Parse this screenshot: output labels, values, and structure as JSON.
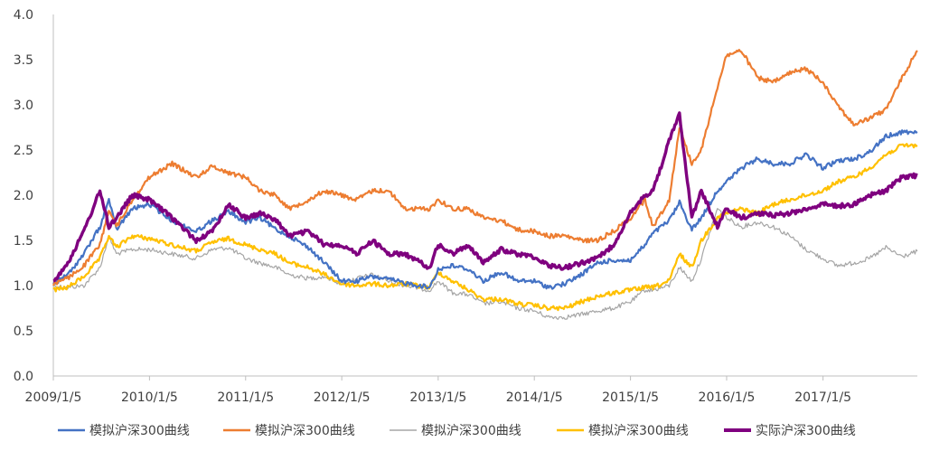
{
  "chart_data": {
    "type": "line",
    "title": "",
    "xlabel": "",
    "ylabel": "",
    "x_tick_labels": [
      "2009/1/5",
      "2010/1/5",
      "2011/1/5",
      "2012/1/5",
      "2013/1/5",
      "2014/1/5",
      "2015/1/5",
      "2016/1/5",
      "2017/1/5"
    ],
    "y_tick_labels": [
      "0.0",
      "0.5",
      "1.0",
      "1.5",
      "2.0",
      "2.5",
      "3.0",
      "3.5",
      "4.0"
    ],
    "ylim": [
      0,
      4
    ],
    "xlim": [
      "2009/1/5",
      "2017/12/29"
    ],
    "grid": false,
    "legend_position": "bottom",
    "series": [
      {
        "name": "模拟沪深300曲线",
        "color": "#4472C4",
        "x": [
          "2009/1/5",
          "2009/3/1",
          "2009/5/1",
          "2009/7/1",
          "2009/8/4",
          "2009/9/1",
          "2009/11/1",
          "2010/1/5",
          "2010/4/1",
          "2010/7/1",
          "2010/9/1",
          "2010/11/1",
          "2011/1/5",
          "2011/3/1",
          "2011/5/1",
          "2011/6/20",
          "2011/9/1",
          "2011/11/1",
          "2012/1/5",
          "2012/3/1",
          "2012/5/1",
          "2012/7/1",
          "2012/9/1",
          "2012/12/3",
          "2013/1/5",
          "2013/3/1",
          "2013/5/1",
          "2013/6/25",
          "2013/9/1",
          "2013/11/1",
          "2014/1/5",
          "2014/3/1",
          "2014/5/1",
          "2014/7/1",
          "2014/9/1",
          "2014/11/1",
          "2015/1/5",
          "2015/3/1",
          "2015/4/1",
          "2015/6/1",
          "2015/7/10",
          "2015/8/26",
          "2015/10/1",
          "2015/12/1",
          "2016/1/5",
          "2016/3/1",
          "2016/5/1",
          "2016/7/1",
          "2016/9/1",
          "2016/11/1",
          "2017/1/5",
          "2017/3/1",
          "2017/5/1",
          "2017/7/1",
          "2017/9/1",
          "2017/11/1",
          "2017/12/29"
        ],
        "y": [
          1.02,
          1.12,
          1.35,
          1.65,
          1.95,
          1.62,
          1.85,
          1.9,
          1.72,
          1.6,
          1.72,
          1.82,
          1.7,
          1.75,
          1.62,
          1.55,
          1.42,
          1.25,
          1.05,
          1.05,
          1.1,
          1.07,
          1.03,
          0.98,
          1.18,
          1.22,
          1.18,
          1.05,
          1.15,
          1.05,
          1.05,
          0.98,
          1.02,
          1.12,
          1.25,
          1.28,
          1.28,
          1.45,
          1.58,
          1.72,
          1.92,
          1.62,
          1.75,
          2.05,
          2.15,
          2.3,
          2.4,
          2.35,
          2.35,
          2.45,
          2.3,
          2.38,
          2.4,
          2.48,
          2.65,
          2.7,
          2.7
        ]
      },
      {
        "name": "模拟沪深300曲线",
        "color": "#ED7D31",
        "x": [
          "2009/1/5",
          "2009/3/1",
          "2009/5/1",
          "2009/7/1",
          "2009/8/4",
          "2009/9/1",
          "2009/11/1",
          "2010/1/5",
          "2010/4/1",
          "2010/7/1",
          "2010/9/1",
          "2010/11/1",
          "2011/1/5",
          "2011/3/1",
          "2011/5/1",
          "2011/6/20",
          "2011/9/1",
          "2011/11/1",
          "2012/1/5",
          "2012/3/1",
          "2012/5/1",
          "2012/7/1",
          "2012/9/1",
          "2012/12/3",
          "2013/1/5",
          "2013/3/1",
          "2013/5/1",
          "2013/6/25",
          "2013/9/1",
          "2013/11/1",
          "2014/1/5",
          "2014/3/1",
          "2014/5/1",
          "2014/7/1",
          "2014/9/1",
          "2014/11/1",
          "2015/1/5",
          "2015/3/1",
          "2015/4/1",
          "2015/6/1",
          "2015/7/10",
          "2015/8/26",
          "2015/10/1",
          "2015/12/1",
          "2016/1/5",
          "2016/3/1",
          "2016/5/1",
          "2016/7/1",
          "2016/9/1",
          "2016/11/1",
          "2017/1/5",
          "2017/3/1",
          "2017/5/1",
          "2017/7/1",
          "2017/9/1",
          "2017/11/1",
          "2017/12/29"
        ],
        "y": [
          1.02,
          1.08,
          1.22,
          1.45,
          1.85,
          1.65,
          1.95,
          2.2,
          2.35,
          2.2,
          2.32,
          2.25,
          2.2,
          2.05,
          2.0,
          1.85,
          1.95,
          2.05,
          2.0,
          1.95,
          2.05,
          2.05,
          1.85,
          1.85,
          1.95,
          1.85,
          1.85,
          1.75,
          1.72,
          1.62,
          1.6,
          1.55,
          1.55,
          1.5,
          1.5,
          1.6,
          1.75,
          1.95,
          1.65,
          1.95,
          2.75,
          2.35,
          2.5,
          3.2,
          3.55,
          3.6,
          3.3,
          3.25,
          3.35,
          3.4,
          3.25,
          3.0,
          2.78,
          2.85,
          2.95,
          3.3,
          3.6
        ]
      },
      {
        "name": "模拟沪深300曲线",
        "color": "#A5A5A5",
        "x": [
          "2009/1/5",
          "2009/3/1",
          "2009/5/1",
          "2009/7/1",
          "2009/8/4",
          "2009/9/1",
          "2009/11/1",
          "2010/1/5",
          "2010/4/1",
          "2010/7/1",
          "2010/9/1",
          "2010/11/1",
          "2011/1/5",
          "2011/3/1",
          "2011/5/1",
          "2011/6/20",
          "2011/9/1",
          "2011/11/1",
          "2012/1/5",
          "2012/3/1",
          "2012/5/1",
          "2012/7/1",
          "2012/9/1",
          "2012/12/3",
          "2013/1/5",
          "2013/3/1",
          "2013/5/1",
          "2013/6/25",
          "2013/9/1",
          "2013/11/1",
          "2014/1/5",
          "2014/3/1",
          "2014/5/1",
          "2014/7/1",
          "2014/9/1",
          "2014/11/1",
          "2015/1/5",
          "2015/3/1",
          "2015/4/1",
          "2015/6/1",
          "2015/7/10",
          "2015/8/26",
          "2015/10/1",
          "2015/12/1",
          "2016/1/5",
          "2016/3/1",
          "2016/5/1",
          "2016/7/1",
          "2016/9/1",
          "2016/11/1",
          "2017/1/5",
          "2017/3/1",
          "2017/5/1",
          "2017/7/1",
          "2017/9/1",
          "2017/11/1",
          "2017/12/29"
        ],
        "y": [
          1.0,
          0.98,
          1.0,
          1.2,
          1.55,
          1.35,
          1.4,
          1.4,
          1.35,
          1.3,
          1.4,
          1.42,
          1.3,
          1.25,
          1.2,
          1.12,
          1.08,
          1.1,
          1.02,
          1.08,
          1.12,
          1.05,
          1.0,
          0.95,
          1.05,
          0.92,
          0.9,
          0.8,
          0.82,
          0.75,
          0.72,
          0.65,
          0.65,
          0.68,
          0.72,
          0.75,
          0.82,
          0.95,
          0.95,
          1.0,
          1.2,
          1.05,
          1.3,
          1.85,
          1.75,
          1.65,
          1.7,
          1.65,
          1.55,
          1.4,
          1.3,
          1.22,
          1.25,
          1.3,
          1.42,
          1.32,
          1.38
        ]
      },
      {
        "name": "模拟沪深300曲线",
        "color": "#FFC000",
        "x": [
          "2009/1/5",
          "2009/3/1",
          "2009/5/1",
          "2009/7/1",
          "2009/8/4",
          "2009/9/1",
          "2009/11/1",
          "2010/1/5",
          "2010/4/1",
          "2010/7/1",
          "2010/9/1",
          "2010/11/1",
          "2011/1/5",
          "2011/3/1",
          "2011/5/1",
          "2011/6/20",
          "2011/9/1",
          "2011/11/1",
          "2012/1/5",
          "2012/3/1",
          "2012/5/1",
          "2012/7/1",
          "2012/9/1",
          "2012/12/3",
          "2013/1/5",
          "2013/3/1",
          "2013/5/1",
          "2013/6/25",
          "2013/9/1",
          "2013/11/1",
          "2014/1/5",
          "2014/3/1",
          "2014/5/1",
          "2014/7/1",
          "2014/9/1",
          "2014/11/1",
          "2015/1/5",
          "2015/3/1",
          "2015/4/1",
          "2015/6/1",
          "2015/7/10",
          "2015/8/26",
          "2015/10/1",
          "2015/12/1",
          "2016/1/5",
          "2016/3/1",
          "2016/5/1",
          "2016/7/1",
          "2016/9/1",
          "2016/11/1",
          "2017/1/5",
          "2017/3/1",
          "2017/5/1",
          "2017/7/1",
          "2017/9/1",
          "2017/11/1",
          "2017/12/29"
        ],
        "y": [
          0.95,
          0.98,
          1.1,
          1.3,
          1.55,
          1.42,
          1.55,
          1.52,
          1.45,
          1.38,
          1.48,
          1.52,
          1.45,
          1.4,
          1.35,
          1.25,
          1.2,
          1.12,
          1.02,
          1.0,
          1.02,
          1.0,
          1.02,
          0.98,
          1.15,
          1.05,
          0.95,
          0.85,
          0.85,
          0.8,
          0.78,
          0.75,
          0.75,
          0.82,
          0.88,
          0.92,
          0.95,
          0.98,
          0.98,
          1.05,
          1.35,
          1.2,
          1.5,
          1.75,
          1.8,
          1.85,
          1.8,
          1.9,
          1.95,
          2.0,
          2.05,
          2.15,
          2.2,
          2.3,
          2.45,
          2.55,
          2.55
        ]
      },
      {
        "name": "实际沪深300曲线",
        "color": "#7F007F",
        "x": [
          "2009/1/5",
          "2009/3/1",
          "2009/5/1",
          "2009/7/1",
          "2009/8/4",
          "2009/9/1",
          "2009/11/1",
          "2010/1/5",
          "2010/4/1",
          "2010/7/1",
          "2010/9/1",
          "2010/11/1",
          "2011/1/5",
          "2011/3/1",
          "2011/5/1",
          "2011/6/20",
          "2011/9/1",
          "2011/11/1",
          "2012/1/5",
          "2012/3/1",
          "2012/5/1",
          "2012/7/1",
          "2012/9/1",
          "2012/12/3",
          "2013/1/5",
          "2013/3/1",
          "2013/5/1",
          "2013/6/25",
          "2013/9/1",
          "2013/11/1",
          "2014/1/5",
          "2014/3/1",
          "2014/5/1",
          "2014/7/1",
          "2014/9/1",
          "2014/11/1",
          "2015/1/5",
          "2015/3/1",
          "2015/4/1",
          "2015/6/1",
          "2015/7/10",
          "2015/8/26",
          "2015/10/1",
          "2015/12/1",
          "2016/1/5",
          "2016/3/1",
          "2016/5/1",
          "2016/7/1",
          "2016/9/1",
          "2016/11/1",
          "2017/1/5",
          "2017/3/1",
          "2017/5/1",
          "2017/7/1",
          "2017/9/1",
          "2017/11/1",
          "2017/12/29"
        ],
        "y": [
          1.05,
          1.25,
          1.6,
          2.05,
          1.65,
          1.75,
          2.0,
          1.95,
          1.75,
          1.5,
          1.6,
          1.9,
          1.75,
          1.8,
          1.72,
          1.55,
          1.6,
          1.45,
          1.45,
          1.35,
          1.5,
          1.35,
          1.35,
          1.2,
          1.45,
          1.35,
          1.45,
          1.25,
          1.4,
          1.35,
          1.32,
          1.22,
          1.2,
          1.25,
          1.3,
          1.45,
          1.8,
          2.0,
          2.05,
          2.6,
          2.9,
          1.75,
          2.05,
          1.65,
          1.85,
          1.75,
          1.8,
          1.78,
          1.8,
          1.85,
          1.9,
          1.88,
          1.9,
          2.0,
          2.05,
          2.2,
          2.22
        ]
      }
    ]
  }
}
